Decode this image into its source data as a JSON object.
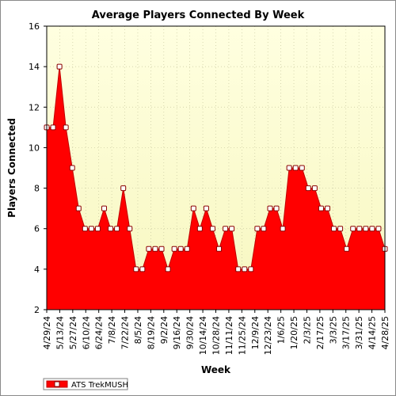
{
  "chart_data": {
    "type": "area",
    "title": "Average Players Connected By Week",
    "xlabel": "Week",
    "ylabel": "Players Connected",
    "ylim": [
      2,
      16
    ],
    "yticks": [
      2,
      4,
      6,
      8,
      10,
      12,
      14,
      16
    ],
    "grid": true,
    "legend_position": "bottom-left",
    "colors": {
      "fill": "#ff0000",
      "line": "#c00000",
      "marker_fill": "#ffffff",
      "marker_edge": "#8b0000",
      "plot_background_top": "#ffffe0",
      "plot_background_bottom": "#f7f7c0",
      "grid": "#c8c8a0"
    },
    "x_tick_labels": [
      "4/29/24",
      "5/13/24",
      "5/27/24",
      "6/10/24",
      "6/24/24",
      "7/8/24",
      "7/22/24",
      "8/5/24",
      "8/19/24",
      "9/2/24",
      "9/16/24",
      "9/30/24",
      "10/14/24",
      "10/28/24",
      "11/11/24",
      "11/25/24",
      "12/9/24",
      "12/23/24",
      "1/6/25",
      "1/20/25",
      "2/3/25",
      "2/17/25",
      "3/3/25",
      "3/17/25",
      "3/31/25",
      "4/14/25",
      "4/28/25"
    ],
    "series": [
      {
        "name": "ATS TrekMUSH",
        "values": [
          11,
          11,
          14,
          11,
          9,
          7,
          6,
          6,
          6,
          7,
          6,
          6,
          8,
          6,
          4,
          4,
          5,
          5,
          5,
          4,
          5,
          5,
          5,
          7,
          6,
          7,
          6,
          5,
          6,
          6,
          4,
          4,
          4,
          6,
          6,
          7,
          7,
          6,
          9,
          9,
          9,
          8,
          8,
          7,
          7,
          6,
          6,
          5,
          6,
          6,
          6,
          6,
          6,
          5
        ]
      }
    ]
  }
}
